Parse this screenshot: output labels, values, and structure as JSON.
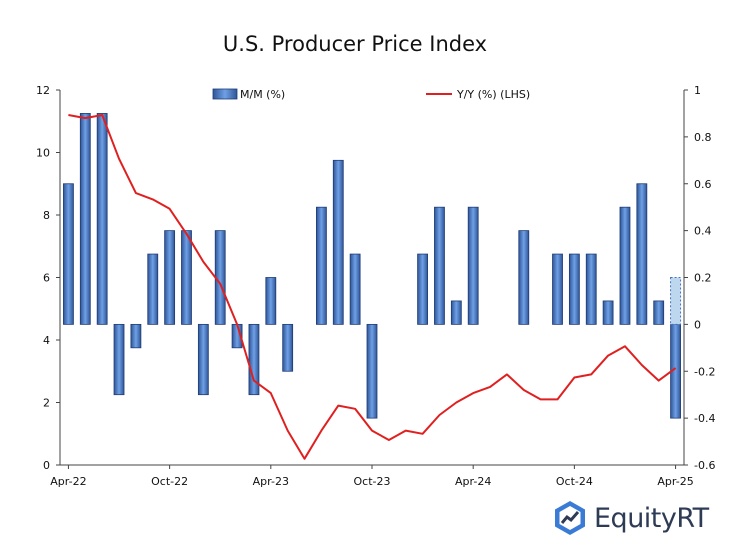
{
  "chart_data": {
    "type": "bar",
    "title": "U.S. Producer Price Index",
    "x_tick_labels": [
      "Apr-22",
      "Oct-22",
      "Apr-23",
      "Oct-23",
      "Apr-24",
      "Oct-24",
      "Apr-25"
    ],
    "left_axis": {
      "ylim": [
        0,
        12
      ],
      "ticks": [
        0,
        2,
        4,
        6,
        8,
        10,
        12
      ]
    },
    "right_axis": {
      "ylim": [
        -0.6,
        1.0
      ],
      "ticks": [
        -0.6,
        -0.4,
        -0.2,
        0,
        0.2,
        0.4,
        0.6,
        0.8,
        1
      ]
    },
    "categories": [
      "Apr-22",
      "May-22",
      "Jun-22",
      "Jul-22",
      "Aug-22",
      "Sep-22",
      "Oct-22",
      "Nov-22",
      "Dec-22",
      "Jan-23",
      "Feb-23",
      "Mar-23",
      "Apr-23",
      "May-23",
      "Jun-23",
      "Jul-23",
      "Aug-23",
      "Sep-23",
      "Oct-23",
      "Nov-23",
      "Dec-23",
      "Jan-24",
      "Feb-24",
      "Mar-24",
      "Apr-24",
      "May-24",
      "Jun-24",
      "Jul-24",
      "Aug-24",
      "Sep-24",
      "Oct-24",
      "Nov-24",
      "Dec-24",
      "Jan-25",
      "Feb-25",
      "Mar-25",
      "Apr-25"
    ],
    "series": [
      {
        "name": "M/M (%)",
        "type": "bar",
        "axis": "right",
        "color": "#4472c4",
        "values": [
          0.6,
          0.9,
          0.9,
          -0.3,
          -0.1,
          0.3,
          0.4,
          0.4,
          -0.3,
          0.4,
          -0.1,
          -0.3,
          0.2,
          -0.2,
          0.0,
          0.5,
          0.7,
          0.3,
          -0.4,
          0.0,
          0.0,
          0.3,
          0.5,
          0.1,
          0.5,
          0.0,
          0.0,
          0.4,
          0.0,
          0.3,
          0.3,
          0.3,
          0.1,
          0.5,
          0.6,
          0.1,
          -0.4
        ],
        "last_bar_projected": {
          "value": 0.2,
          "color": "#bdd7ee"
        }
      },
      {
        "name": "Y/Y (%) (LHS)",
        "type": "line",
        "axis": "left",
        "color": "#e02020",
        "values": [
          11.2,
          11.1,
          11.2,
          9.8,
          8.7,
          8.5,
          8.2,
          7.4,
          6.5,
          5.8,
          4.5,
          2.7,
          2.3,
          1.1,
          0.2,
          1.1,
          1.9,
          1.8,
          1.1,
          0.8,
          1.1,
          1.0,
          1.6,
          2.0,
          2.3,
          2.5,
          2.9,
          2.4,
          2.1,
          2.1,
          2.8,
          2.9,
          3.5,
          3.8,
          3.2,
          2.7,
          3.1
        ]
      }
    ],
    "grid": false,
    "legend_position": "top"
  },
  "brand": {
    "name": "EquityRT",
    "icon": "equityrt-logo-icon",
    "color": "#2e3b55"
  }
}
